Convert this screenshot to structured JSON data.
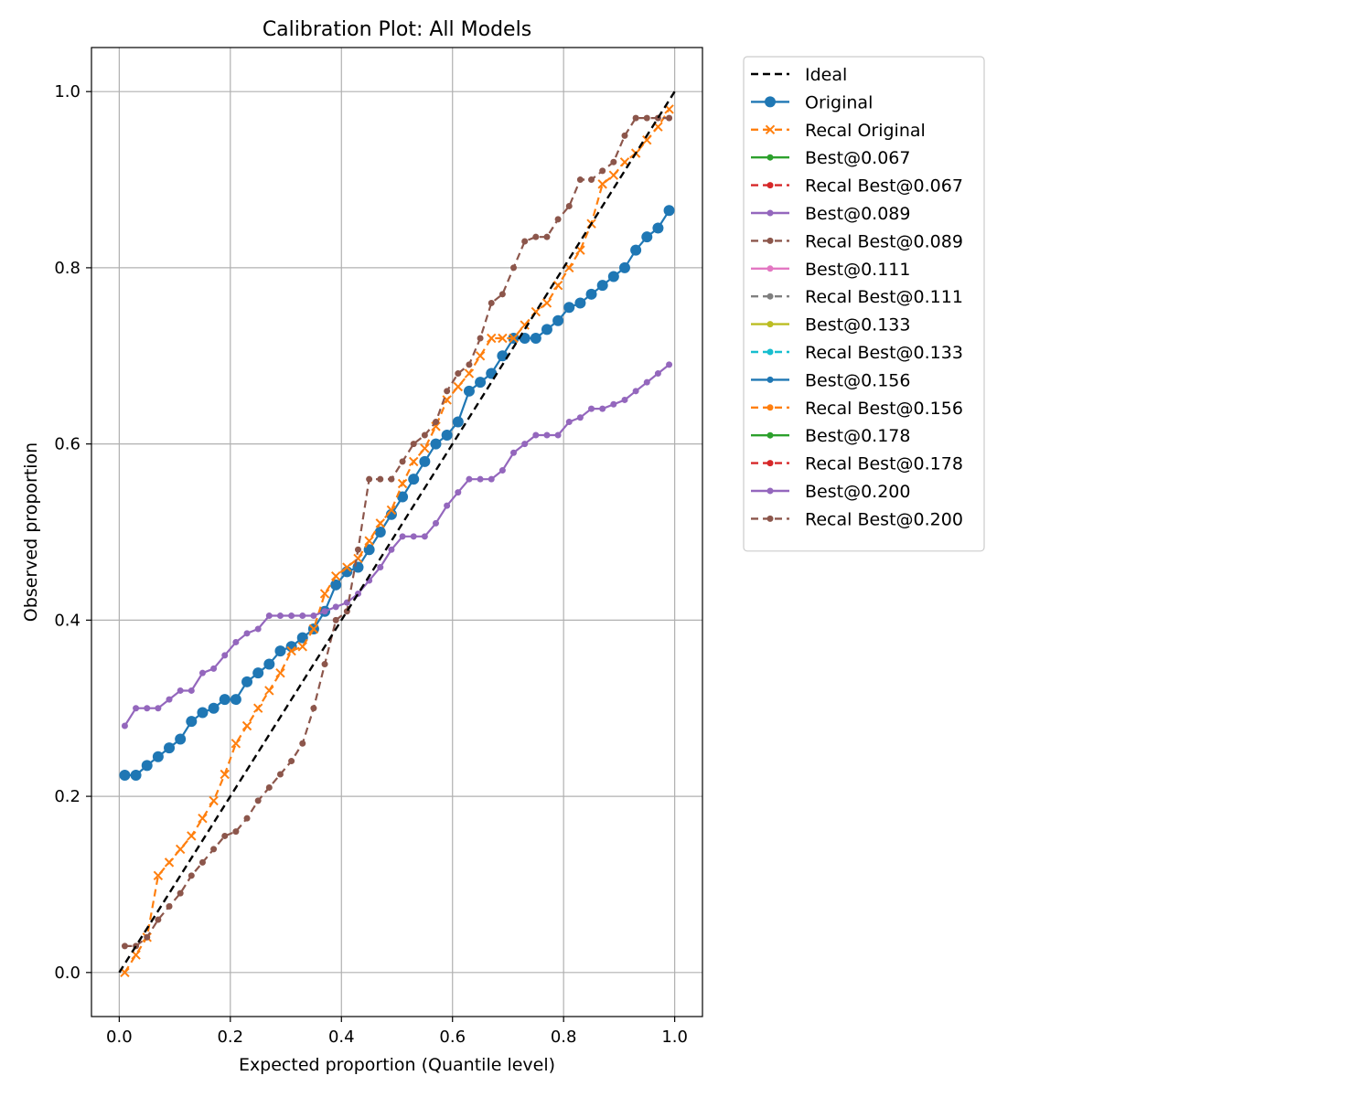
{
  "chart_data": {
    "type": "line",
    "title": "Calibration Plot: All Models",
    "xlabel": "Expected proportion (Quantile level)",
    "ylabel": "Observed proportion",
    "xlim": [
      -0.05,
      1.05
    ],
    "ylim": [
      -0.05,
      1.05
    ],
    "xticks": [
      "0.0",
      "0.2",
      "0.4",
      "0.6",
      "0.8",
      "1.0"
    ],
    "yticks": [
      "0.0",
      "0.2",
      "0.4",
      "0.6",
      "0.8",
      "1.0"
    ],
    "grid": true,
    "legend_position": "outside-right",
    "series": [
      {
        "name": "Ideal",
        "color": "#000000",
        "dash": "dashed",
        "marker": "none",
        "x": [
          0,
          1
        ],
        "y": [
          0,
          1
        ]
      },
      {
        "name": "Original",
        "color": "#1f77b4",
        "dash": "solid",
        "marker": "circle-large",
        "x": [
          0.01,
          0.03,
          0.05,
          0.07,
          0.09,
          0.11,
          0.13,
          0.15,
          0.17,
          0.19,
          0.21,
          0.23,
          0.25,
          0.27,
          0.29,
          0.31,
          0.33,
          0.35,
          0.37,
          0.39,
          0.41,
          0.43,
          0.45,
          0.47,
          0.49,
          0.51,
          0.53,
          0.55,
          0.57,
          0.59,
          0.61,
          0.63,
          0.65,
          0.67,
          0.69,
          0.71,
          0.73,
          0.75,
          0.77,
          0.79,
          0.81,
          0.83,
          0.85,
          0.87,
          0.89,
          0.91,
          0.93,
          0.95,
          0.97,
          0.99
        ],
        "y": [
          0.224,
          0.224,
          0.235,
          0.245,
          0.255,
          0.265,
          0.285,
          0.295,
          0.3,
          0.31,
          0.31,
          0.33,
          0.34,
          0.35,
          0.365,
          0.37,
          0.38,
          0.39,
          0.41,
          0.44,
          0.455,
          0.46,
          0.48,
          0.5,
          0.52,
          0.54,
          0.56,
          0.58,
          0.6,
          0.61,
          0.625,
          0.66,
          0.67,
          0.68,
          0.7,
          0.72,
          0.72,
          0.72,
          0.73,
          0.74,
          0.755,
          0.76,
          0.77,
          0.78,
          0.79,
          0.8,
          0.82,
          0.835,
          0.845,
          0.865
        ]
      },
      {
        "name": "Recal Original",
        "color": "#ff7f0e",
        "dash": "dashed",
        "marker": "x",
        "x": [
          0.01,
          0.03,
          0.05,
          0.07,
          0.09,
          0.11,
          0.13,
          0.15,
          0.17,
          0.19,
          0.21,
          0.23,
          0.25,
          0.27,
          0.29,
          0.31,
          0.33,
          0.35,
          0.37,
          0.39,
          0.41,
          0.43,
          0.45,
          0.47,
          0.49,
          0.51,
          0.53,
          0.55,
          0.57,
          0.59,
          0.61,
          0.63,
          0.65,
          0.67,
          0.69,
          0.71,
          0.73,
          0.75,
          0.77,
          0.79,
          0.81,
          0.83,
          0.85,
          0.87,
          0.89,
          0.91,
          0.93,
          0.95,
          0.97,
          0.99
        ],
        "y": [
          0.0,
          0.02,
          0.04,
          0.11,
          0.125,
          0.14,
          0.155,
          0.175,
          0.195,
          0.225,
          0.26,
          0.28,
          0.3,
          0.32,
          0.34,
          0.365,
          0.37,
          0.39,
          0.43,
          0.45,
          0.46,
          0.47,
          0.49,
          0.51,
          0.525,
          0.555,
          0.58,
          0.595,
          0.62,
          0.65,
          0.665,
          0.68,
          0.7,
          0.72,
          0.72,
          0.72,
          0.735,
          0.75,
          0.76,
          0.78,
          0.8,
          0.82,
          0.85,
          0.895,
          0.905,
          0.92,
          0.93,
          0.945,
          0.96,
          0.98
        ]
      },
      {
        "name": "Best@0.067",
        "color": "#2ca02c",
        "dash": "solid",
        "marker": "dot",
        "x": [],
        "y": []
      },
      {
        "name": "Recal Best@0.067",
        "color": "#d62728",
        "dash": "dashed",
        "marker": "dot",
        "x": [],
        "y": []
      },
      {
        "name": "Best@0.089",
        "color": "#9467bd",
        "dash": "solid",
        "marker": "dot",
        "x": [],
        "y": []
      },
      {
        "name": "Recal Best@0.089",
        "color": "#8c564b",
        "dash": "dashed",
        "marker": "dot",
        "x": [],
        "y": []
      },
      {
        "name": "Best@0.111",
        "color": "#e377c2",
        "dash": "solid",
        "marker": "dot",
        "x": [],
        "y": []
      },
      {
        "name": "Recal Best@0.111",
        "color": "#7f7f7f",
        "dash": "dashed",
        "marker": "dot",
        "x": [],
        "y": []
      },
      {
        "name": "Best@0.133",
        "color": "#bcbd22",
        "dash": "solid",
        "marker": "dot",
        "x": [],
        "y": []
      },
      {
        "name": "Recal Best@0.133",
        "color": "#17becf",
        "dash": "dashed",
        "marker": "dot",
        "x": [],
        "y": []
      },
      {
        "name": "Best@0.156",
        "color": "#1f77b4",
        "dash": "solid",
        "marker": "dot",
        "x": [],
        "y": []
      },
      {
        "name": "Recal Best@0.156",
        "color": "#ff7f0e",
        "dash": "dashed",
        "marker": "dot",
        "x": [],
        "y": []
      },
      {
        "name": "Best@0.178",
        "color": "#2ca02c",
        "dash": "solid",
        "marker": "dot",
        "x": [],
        "y": []
      },
      {
        "name": "Recal Best@0.178",
        "color": "#d62728",
        "dash": "dashed",
        "marker": "dot",
        "x": [],
        "y": []
      },
      {
        "name": "Best@0.200",
        "color": "#9467bd",
        "dash": "solid",
        "marker": "dot",
        "x": [
          0.01,
          0.03,
          0.05,
          0.07,
          0.09,
          0.11,
          0.13,
          0.15,
          0.17,
          0.19,
          0.21,
          0.23,
          0.25,
          0.27,
          0.29,
          0.31,
          0.33,
          0.35,
          0.37,
          0.39,
          0.41,
          0.43,
          0.45,
          0.47,
          0.49,
          0.51,
          0.53,
          0.55,
          0.57,
          0.59,
          0.61,
          0.63,
          0.65,
          0.67,
          0.69,
          0.71,
          0.73,
          0.75,
          0.77,
          0.79,
          0.81,
          0.83,
          0.85,
          0.87,
          0.89,
          0.91,
          0.93,
          0.95,
          0.97,
          0.99
        ],
        "y": [
          0.28,
          0.3,
          0.3,
          0.3,
          0.31,
          0.32,
          0.32,
          0.34,
          0.345,
          0.36,
          0.375,
          0.385,
          0.39,
          0.405,
          0.405,
          0.405,
          0.405,
          0.405,
          0.41,
          0.415,
          0.42,
          0.43,
          0.445,
          0.46,
          0.48,
          0.495,
          0.495,
          0.495,
          0.51,
          0.53,
          0.545,
          0.56,
          0.56,
          0.56,
          0.57,
          0.59,
          0.6,
          0.61,
          0.61,
          0.61,
          0.625,
          0.63,
          0.64,
          0.64,
          0.645,
          0.65,
          0.66,
          0.67,
          0.68,
          0.69
        ]
      },
      {
        "name": "Recal Best@0.200",
        "color": "#8c564b",
        "dash": "dashed",
        "marker": "dot",
        "x": [
          0.01,
          0.03,
          0.05,
          0.07,
          0.09,
          0.11,
          0.13,
          0.15,
          0.17,
          0.19,
          0.21,
          0.23,
          0.25,
          0.27,
          0.29,
          0.31,
          0.33,
          0.35,
          0.37,
          0.39,
          0.41,
          0.43,
          0.45,
          0.47,
          0.49,
          0.51,
          0.53,
          0.55,
          0.57,
          0.59,
          0.61,
          0.63,
          0.65,
          0.67,
          0.69,
          0.71,
          0.73,
          0.75,
          0.77,
          0.79,
          0.81,
          0.83,
          0.85,
          0.87,
          0.89,
          0.91,
          0.93,
          0.95,
          0.97,
          0.99
        ],
        "y": [
          0.03,
          0.03,
          0.04,
          0.06,
          0.075,
          0.09,
          0.11,
          0.125,
          0.14,
          0.155,
          0.16,
          0.175,
          0.195,
          0.21,
          0.225,
          0.24,
          0.26,
          0.3,
          0.35,
          0.4,
          0.41,
          0.48,
          0.56,
          0.56,
          0.56,
          0.58,
          0.6,
          0.61,
          0.625,
          0.66,
          0.68,
          0.69,
          0.72,
          0.76,
          0.77,
          0.8,
          0.83,
          0.835,
          0.835,
          0.855,
          0.87,
          0.9,
          0.9,
          0.91,
          0.92,
          0.95,
          0.97,
          0.97,
          0.97,
          0.97
        ]
      }
    ]
  }
}
